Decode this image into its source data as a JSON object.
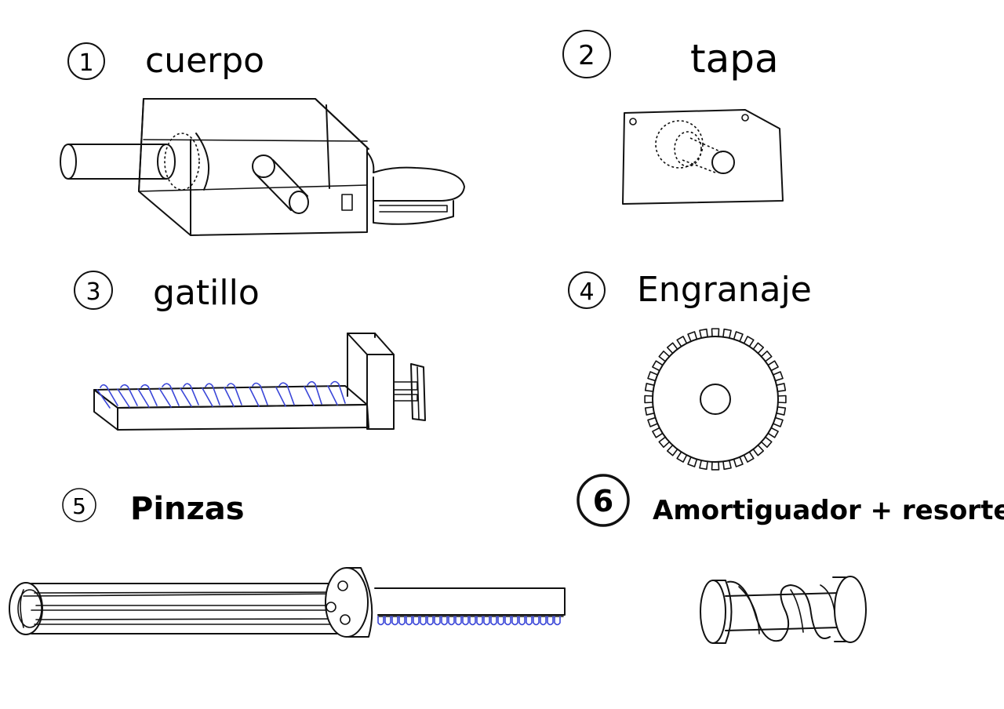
{
  "parts": [
    {
      "number": "1",
      "name": "cuerpo"
    },
    {
      "number": "2",
      "name": "tapa"
    },
    {
      "number": "3",
      "name": "gatillo"
    },
    {
      "number": "4",
      "name": "Engranaje"
    },
    {
      "number": "5",
      "name": "Pinzas"
    },
    {
      "number": "6",
      "name": "Amortiguador + resorte"
    }
  ],
  "colors": {
    "ink": "#111111",
    "rack_teeth": "#3a46d8",
    "background": "#ffffff"
  }
}
